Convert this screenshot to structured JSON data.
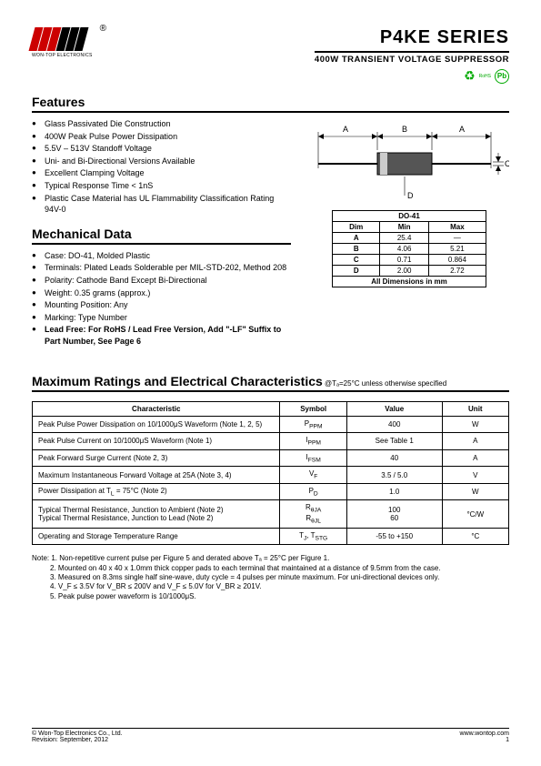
{
  "header": {
    "brand": "WON-TOP ELECTRONICS",
    "title": "P4KE  SERIES",
    "subtitle": "400W  TRANSIENT  VOLTAGE  SUPPRESSOR",
    "rohs_label": "RoHS",
    "pb_label": "Pb"
  },
  "features": {
    "heading": "Features",
    "items": [
      "Glass Passivated Die Construction",
      "400W Peak Pulse Power Dissipation",
      "5.5V – 513V Standoff Voltage",
      "Uni- and Bi-Directional Versions Available",
      "Excellent Clamping Voltage",
      "Typical Response Time < 1nS",
      "Plastic Case Material has UL Flammability Classification Rating 94V-0"
    ]
  },
  "mechanical": {
    "heading": "Mechanical Data",
    "items": [
      "Case: DO-41, Molded Plastic",
      "Terminals: Plated Leads Solderable per MIL-STD-202, Method 208",
      "Polarity: Cathode Band Except Bi-Directional",
      "Weight: 0.35 grams (approx.)",
      "Mounting Position: Any",
      "Marking: Type Number"
    ],
    "bold_item": "Lead Free: For RoHS / Lead Free Version, Add \"-LF\" Suffix to Part Number, See Page 6"
  },
  "diagram": {
    "labels": {
      "A": "A",
      "B": "B",
      "C": "C",
      "D": "D"
    }
  },
  "dim_table": {
    "title": "DO-41",
    "headers": [
      "Dim",
      "Min",
      "Max"
    ],
    "rows": [
      [
        "A",
        "25.4",
        "—"
      ],
      [
        "B",
        "4.06",
        "5.21"
      ],
      [
        "C",
        "0.71",
        "0.864"
      ],
      [
        "D",
        "2.00",
        "2.72"
      ]
    ],
    "caption": "All Dimensions in mm"
  },
  "char": {
    "heading": "Maximum Ratings and Electrical Characteristics",
    "heading_sub": " @Tₐ=25°C unless otherwise specified",
    "headers": [
      "Characteristic",
      "Symbol",
      "Value",
      "Unit"
    ],
    "rows": [
      [
        "Peak Pulse Power Dissipation on 10/1000μS Waveform (Note 1, 2, 5)",
        "P<sub>PPM</sub>",
        "400",
        "W"
      ],
      [
        "Peak Pulse Current on 10/1000μS Waveform (Note 1)",
        "I<sub>PPM</sub>",
        "See Table 1",
        "A"
      ],
      [
        "Peak Forward Surge Current (Note 2, 3)",
        "I<sub>FSM</sub>",
        "40",
        "A"
      ],
      [
        "Maximum Instantaneous Forward Voltage at 25A (Note 3, 4)",
        "V<sub>F</sub>",
        "3.5 / 5.0",
        "V"
      ],
      [
        "Power Dissipation at T<sub>L</sub> = 75°C (Note 2)",
        "P<sub>D</sub>",
        "1.0",
        "W"
      ],
      [
        "Typical Thermal Resistance, Junction to Ambient (Note 2)<br>Typical Thermal Resistance, Junction to Lead (Note 2)",
        "R<sub>θJA</sub><br>R<sub>θJL</sub>",
        "100<br>60",
        "°C/W"
      ],
      [
        "Operating and Storage Temperature Range",
        "T<sub>J</sub>, T<sub>STG</sub>",
        "-55 to +150",
        "°C"
      ]
    ]
  },
  "notes": {
    "label": "Note:",
    "items": [
      "1. Non-repetitive current pulse per Figure 5 and derated above Tₐ = 25°C per Figure 1.",
      "2. Mounted on 40 x 40 x 1.0mm thick copper pads to each terminal that maintained at a distance of 9.5mm from the case.",
      "3. Measured on 8.3ms single half sine-wave, duty cycle = 4 pulses per minute maximum. For uni-directional devices only.",
      "4. V_F ≤ 3.5V for V_BR ≤ 200V and V_F ≤ 5.0V for V_BR ≥ 201V.",
      "5. Peak pulse power waveform is 10/1000μS."
    ]
  },
  "footer": {
    "company": "© Won-Top Electronics Co., Ltd.",
    "revision": "Revision: September, 2012",
    "url": "www.wontop.com",
    "page": "1"
  }
}
